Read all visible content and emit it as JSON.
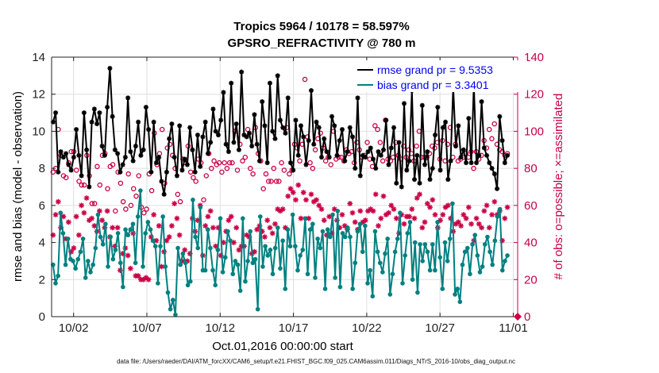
{
  "chart_data": {
    "type": "line",
    "title_line1": "Tropics 5964 / 10178 = 58.597%",
    "title_line2": "GPSRO_REFRACTIVITY @ 780 m",
    "xlabel": "Oct.01,2016 00:00:00 start",
    "ylabel_left": "rmse and bias (model - observation)",
    "ylabel_right": "# of obs: o=possible; ×=assimilated",
    "footer": "data file: /Users/raeder/DAI/ATM_forcXX/CAM6_setup/f.e21.FHIST_BGC.f09_025.CAM6assim.011/Diags_NTrS_2016-10/obs_diag_output.nc",
    "xlim": [
      0.5,
      31.5
    ],
    "ylim_left": [
      0,
      14
    ],
    "ylim_right": [
      0,
      140
    ],
    "x_ticks": [
      2,
      7,
      12,
      17,
      22,
      27,
      32
    ],
    "x_tick_labels": [
      "10/02",
      "10/07",
      "10/12",
      "10/17",
      "10/22",
      "10/27",
      "11/01"
    ],
    "y_left_ticks": [
      0,
      2,
      4,
      6,
      8,
      10,
      12,
      14
    ],
    "y_right_ticks": [
      0,
      20,
      40,
      60,
      80,
      100,
      120,
      140
    ],
    "grid": true,
    "colors": {
      "rmse": "#000000",
      "bias": "#008080",
      "obs": "#cc0044",
      "legend_text": "#0000ff",
      "axis_right": "#c7004a"
    },
    "series": [
      {
        "name": "rmse grand pr = 9.5353",
        "values": [
          10.5,
          11.0,
          7.8,
          8.9,
          8.6,
          8.8,
          8.2,
          7.9,
          8.6,
          10.1,
          8.7,
          7.6,
          11.0,
          9.0,
          7.0,
          10.5,
          11.2,
          10.4,
          11.0,
          9.2,
          8.7,
          11.3,
          13.4,
          10.8,
          9.0,
          8.8,
          7.8,
          8.2,
          8.6,
          11.8,
          8.9,
          8.4,
          9.2,
          10.5,
          8.7,
          9.0,
          11.3,
          10.1,
          7.8,
          10.5,
          8.3,
          8.6,
          7.3,
          6.6,
          7.8,
          9.6,
          10.4,
          8.6,
          7.6,
          10.3,
          7.9,
          8.5,
          8.2,
          10.2,
          9.0,
          7.8,
          9.8,
          8.1,
          9.7,
          10.5,
          8.8,
          9.4,
          11.2,
          10.0,
          9.8,
          10.6,
          12.1,
          9.3,
          8.9,
          12.6,
          9.4,
          10.4,
          9.0,
          13.2,
          9.8,
          9.7,
          9.9,
          9.2,
          10.9,
          9.3,
          8.4,
          11.6,
          10.3,
          8.3,
          12.6,
          10.0,
          9.6,
          13.0,
          10.6,
          10.2,
          9.9,
          11.8,
          8.3,
          7.9,
          10.6,
          8.7,
          10.3,
          9.7,
          8.2,
          9.5,
          12.2,
          9.3,
          10.5,
          10.2,
          8.6,
          9.6,
          8.9,
          8.6,
          10.8,
          10.3,
          8.7,
          9.5,
          10.1,
          8.4,
          8.9,
          10.2,
          9.7,
          8.0,
          11.8,
          7.6,
          8.7,
          8.6,
          8.9,
          9.1,
          8.5,
          8.0,
          8.9,
          8.7,
          9.0,
          10.6,
          8.2,
          9.1,
          10.2,
          7.2,
          9.4,
          7.0,
          11.5,
          7.9,
          8.4,
          12.2,
          7.4,
          8.7,
          7.2,
          11.4,
          8.2,
          8.9,
          7.4,
          8.0,
          9.8,
          11.3,
          7.9,
          10.2,
          10.5,
          7.4,
          8.4,
          12.4,
          9.2,
          10.3,
          8.6,
          9.0,
          8.3,
          10.7,
          8.3,
          12.5,
          8.3,
          8.7,
          11.6,
          9.1,
          8.7,
          8.3,
          8.0,
          7.7,
          6.9,
          10.8,
          9.5,
          8.3,
          8.7
        ]
      },
      {
        "name": "bias grand pr = 3.3401",
        "values": [
          2.8,
          1.8,
          2.2,
          5.6,
          4.5,
          2.8,
          4.2,
          3.1,
          3.0,
          2.6,
          3.1,
          3.5,
          4.2,
          2.1,
          3.0,
          2.4,
          2.8,
          3.7,
          5.5,
          4.3,
          3.9,
          5.0,
          2.7,
          4.3,
          3.1,
          3.6,
          4.5,
          2.9,
          1.6,
          4.7,
          4.4,
          4.7,
          5.0,
          2.9,
          5.4,
          6.8,
          2.7,
          4.5,
          5.1,
          4.7,
          4.1,
          3.8,
          1.8,
          3.8,
          5.4,
          2.7,
          1.3,
          0.4,
          0.9,
          0.1,
          3.7,
          2.8,
          3.4,
          2.9,
          1.7,
          1.9,
          6.3,
          4.3,
          3.7,
          5.9,
          2.5,
          2.5,
          4.7,
          3.7,
          2.5,
          1.7,
          3.6,
          5.3,
          2.4,
          3.2,
          4.6,
          4.1,
          2.3,
          3.0,
          2.8,
          1.4,
          5.3,
          1.9,
          3.0,
          4.6,
          2.9,
          3.1,
          0.4,
          5.4,
          2.7,
          3.8,
          3.3,
          3.6,
          2.3,
          3.7,
          4.8,
          2.6,
          4.1,
          1.5,
          4.7,
          3.8,
          5.5,
          3.8,
          2.5,
          3.3,
          3.6,
          5.3,
          2.3,
          4.7,
          5.0,
          2.1,
          4.2,
          3.7,
          4.6,
          1.5,
          4.7,
          4.3,
          5.5,
          2.1,
          5.7,
          1.6,
          4.5,
          4.3,
          4.8,
          4.3,
          1.5,
          2.9,
          4.6,
          5.0,
          3.5,
          4.9,
          1.8,
          2.5,
          1.1,
          4.6,
          3.5,
          2.9,
          2.4,
          3.4,
          4.2,
          1.2,
          2.3,
          3.5,
          4.2,
          5.6,
          1.8,
          3.3,
          4.5,
          5.1,
          2.0,
          4.0,
          1.3,
          3.9,
          3.0,
          3.9,
          3.5,
          2.5,
          3.9,
          2.5,
          5.1,
          3.2,
          1.5,
          4.0,
          3.0,
          4.2,
          6.1,
          1.2,
          1.5,
          0.8,
          2.8,
          3.5,
          3.7,
          2.3,
          3.9,
          4.4,
          3.3,
          2.4,
          2.7,
          3.9,
          4.3,
          3.5,
          2.8,
          4.1,
          5.4,
          5.8,
          2.5,
          3.0,
          3.3
        ]
      },
      {
        "name": "# of obs possible",
        "values": [
          78,
          80,
          101,
          87,
          76,
          75,
          83,
          89,
          89,
          79,
          73,
          71,
          71,
          87,
          76,
          61,
          61,
          81,
          71,
          87,
          88,
          69,
          81,
          82,
          57,
          78,
          72,
          62,
          58,
          77,
          60,
          69,
          65,
          76,
          59,
          56,
          58,
          77,
          68,
          99,
          82,
          88,
          101,
          72,
          91,
          93,
          87,
          80,
          66,
          62,
          85,
          83,
          92,
          78,
          75,
          73,
          85,
          83,
          63,
          76,
          88,
          80,
          84,
          82,
          83,
          78,
          83,
          80,
          83,
          83,
          100,
          79,
          93,
          84,
          86,
          101,
          80,
          77,
          102,
          88,
          84,
          69,
          77,
          73,
          73,
          80,
          73,
          73,
          83,
          79,
          102,
          77,
          79,
          93,
          91,
          84,
          93,
          128,
          97,
          83,
          80,
          90,
          96,
          99,
          91,
          84,
          86,
          82,
          100,
          85,
          86,
          86,
          84,
          90,
          88,
          89,
          83,
          94,
          90,
          86,
          87,
          94,
          85,
          81,
          103,
          101,
          94,
          84,
          106,
          85,
          84,
          86,
          94,
          87,
          85,
          92,
          86,
          90,
          88,
          84,
          92,
          100,
          86,
          86,
          86,
          88,
          92,
          91,
          94,
          85,
          95,
          84,
          93,
          102,
          86,
          93,
          84,
          85,
          86,
          88,
          86,
          89,
          80,
          89,
          85,
          87,
          95,
          91,
          101,
          96,
          104,
          93,
          90,
          89,
          87,
          88
        ]
      },
      {
        "name": "# of obs assimilated",
        "values": [
          44,
          55,
          62,
          48,
          54,
          42,
          51,
          35,
          37,
          54,
          44,
          60,
          56,
          64,
          52,
          53,
          49,
          46,
          57,
          52,
          48,
          57,
          43,
          48,
          38,
          48,
          25,
          34,
          37,
          33,
          26,
          45,
          22,
          22,
          20,
          20,
          21,
          20,
          43,
          55,
          41,
          49,
          27,
          35,
          41,
          43,
          49,
          61,
          53,
          44,
          30,
          36,
          30,
          34,
          53,
          46,
          52,
          60,
          33,
          49,
          54,
          57,
          48,
          38,
          48,
          33,
          40,
          46,
          52,
          54,
          40,
          48,
          36,
          38,
          38,
          44,
          43,
          34,
          35,
          47,
          49,
          46,
          43,
          52,
          48,
          45,
          50,
          58,
          57,
          58,
          48,
          65,
          69,
          67,
          63,
          71,
          53,
          67,
          63,
          53,
          66,
          62,
          63,
          60,
          58,
          52,
          44,
          54,
          45,
          58,
          52,
          48,
          55,
          49,
          47,
          61,
          56,
          51,
          47,
          57,
          51,
          52,
          57,
          58,
          57,
          66,
          49,
          53,
          65,
          55,
          56,
          60,
          58,
          53,
          45,
          55,
          50,
          54,
          54,
          58,
          53,
          64,
          66,
          48,
          51,
          61,
          59,
          63,
          55,
          48,
          52,
          55,
          59,
          60,
          53,
          46,
          50,
          51,
          49,
          55,
          53,
          59,
          50,
          41,
          53,
          50,
          48,
          57,
          60,
          48,
          55,
          62,
          55,
          57,
          41,
          53,
          59
        ]
      }
    ]
  }
}
